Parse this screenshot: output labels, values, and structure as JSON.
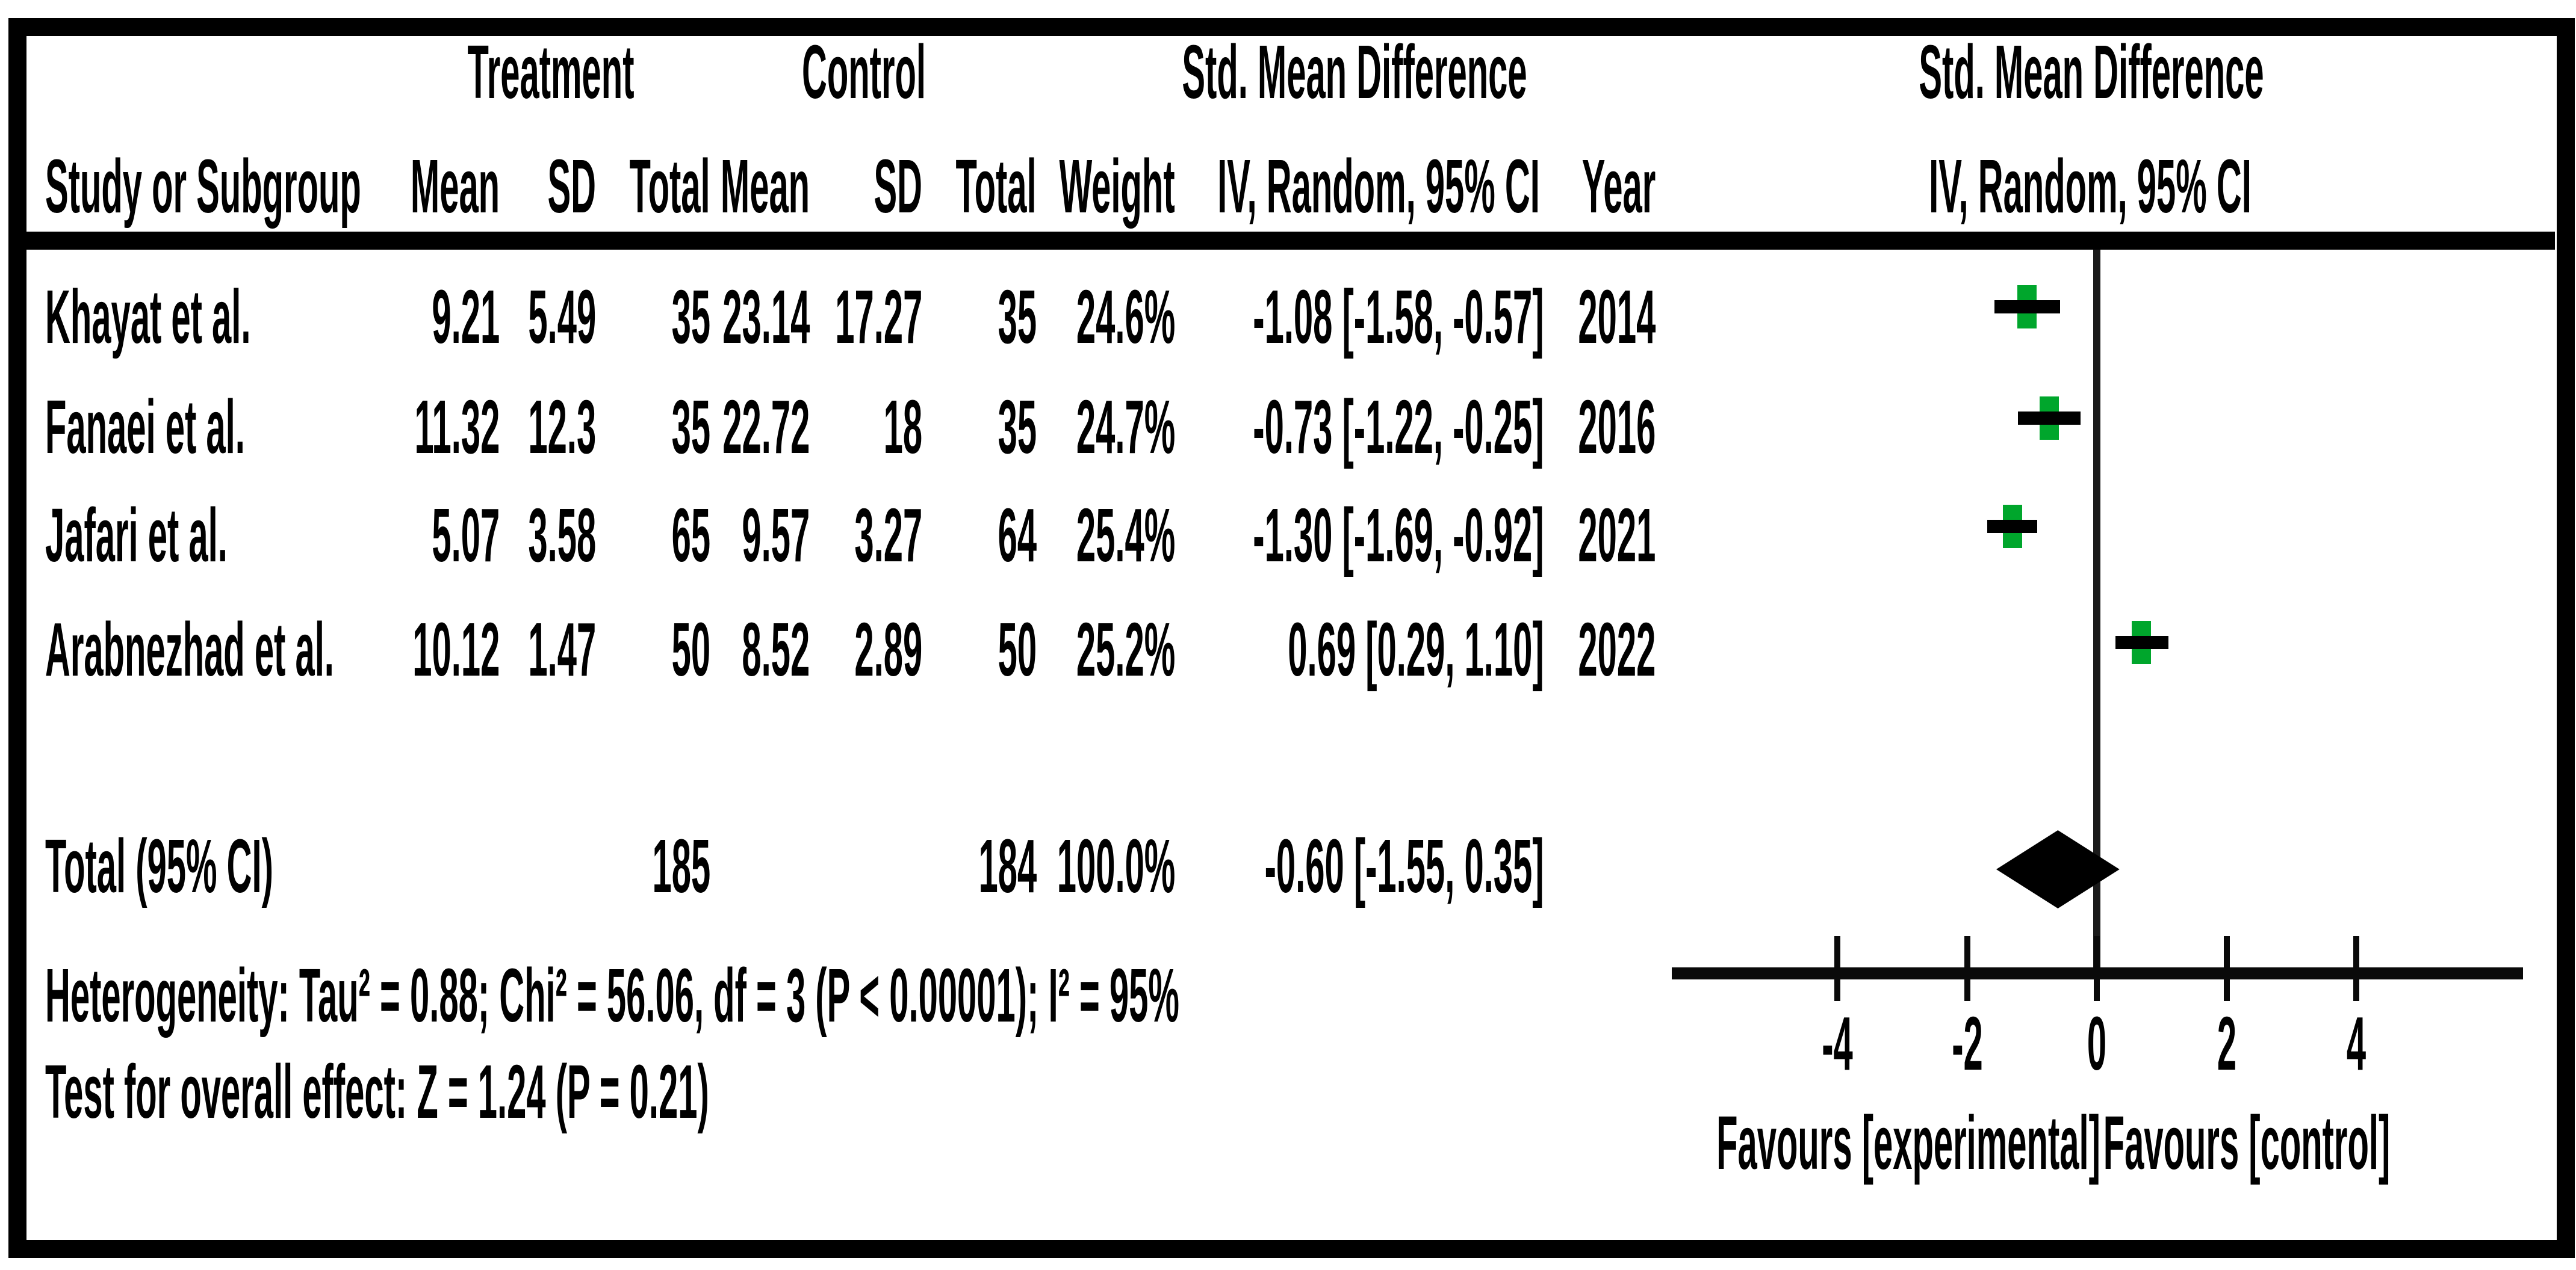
{
  "table": {
    "group_headers": {
      "treatment": "Treatment",
      "control": "Control",
      "smd": "Std. Mean Difference",
      "smd_plot": "Std. Mean Difference"
    },
    "col_headers": {
      "study": "Study or Subgroup",
      "mean": "Mean",
      "sd": "SD",
      "total": "Total",
      "mean2": "Mean",
      "sd2": "SD",
      "total2": "Total",
      "weight": "Weight",
      "iv": "IV, Random, 95% CI",
      "year": "Year",
      "iv_plot": "IV, Random, 95% CI"
    },
    "studies": [
      {
        "name": "Khayat et al.",
        "mean": "9.21",
        "sd": "5.49",
        "total": "35",
        "c_mean": "23.14",
        "c_sd": "17.27",
        "c_total": "35",
        "weight": "24.6%",
        "ci": "-1.08 [-1.58, -0.57]",
        "year": "2014"
      },
      {
        "name": "Fanaei et al.",
        "mean": "11.32",
        "sd": "12.3",
        "total": "35",
        "c_mean": "22.72",
        "c_sd": "18",
        "c_total": "35",
        "weight": "24.7%",
        "ci": "-0.73 [-1.22, -0.25]",
        "year": "2016"
      },
      {
        "name": "Jafari et al.",
        "mean": "5.07",
        "sd": "3.58",
        "total": "65",
        "c_mean": "9.57",
        "c_sd": "3.27",
        "c_total": "64",
        "weight": "25.4%",
        "ci": "-1.30 [-1.69, -0.92]",
        "year": "2021"
      },
      {
        "name": "Arabnezhad et al.",
        "mean": "10.12",
        "sd": "1.47",
        "total": "50",
        "c_mean": "8.52",
        "c_sd": "2.89",
        "c_total": "50",
        "weight": "25.2%",
        "ci": "0.69 [0.29, 1.10]",
        "year": "2022"
      }
    ],
    "total_row": {
      "label": "Total (95% CI)",
      "total": "185",
      "c_total": "184",
      "weight": "100.0%",
      "ci": "-0.60 [-1.55, 0.35]"
    },
    "heterogeneity": "Heterogeneity: Tau² = 0.88; Chi² = 56.06, df = 3 (P < 0.00001); I² = 95%",
    "overall_effect": "Test for overall effect: Z = 1.24 (P = 0.21)"
  },
  "plot": {
    "tick_labels": [
      "-4",
      "-2",
      "0",
      "2",
      "4"
    ],
    "favours_left": "Favours [experimental]",
    "favours_right": "Favours [control]",
    "marker_color": "#00a62c",
    "diamond_color": "#000000"
  },
  "chart_data": {
    "type": "forest",
    "effect_measure": "Std. Mean Difference, IV, Random, 95% CI",
    "x_axis": {
      "min": -4,
      "max": 4,
      "ticks": [
        -4,
        -2,
        0,
        2,
        4
      ],
      "label_left": "Favours [experimental]",
      "label_right": "Favours [control]"
    },
    "studies": [
      {
        "study": "Khayat et al.",
        "year": 2014,
        "treatment": {
          "mean": 9.21,
          "sd": 5.49,
          "total": 35
        },
        "control": {
          "mean": 23.14,
          "sd": 17.27,
          "total": 35
        },
        "weight_pct": 24.6,
        "smd": -1.08,
        "ci_low": -1.58,
        "ci_high": -0.57
      },
      {
        "study": "Fanaei et al.",
        "year": 2016,
        "treatment": {
          "mean": 11.32,
          "sd": 12.3,
          "total": 35
        },
        "control": {
          "mean": 22.72,
          "sd": 18,
          "total": 35
        },
        "weight_pct": 24.7,
        "smd": -0.73,
        "ci_low": -1.22,
        "ci_high": -0.25
      },
      {
        "study": "Jafari et al.",
        "year": 2021,
        "treatment": {
          "mean": 5.07,
          "sd": 3.58,
          "total": 65
        },
        "control": {
          "mean": 9.57,
          "sd": 3.27,
          "total": 64
        },
        "weight_pct": 25.4,
        "smd": -1.3,
        "ci_low": -1.69,
        "ci_high": -0.92
      },
      {
        "study": "Arabnezhad et al.",
        "year": 2022,
        "treatment": {
          "mean": 10.12,
          "sd": 1.47,
          "total": 50
        },
        "control": {
          "mean": 8.52,
          "sd": 2.89,
          "total": 50
        },
        "weight_pct": 25.2,
        "smd": 0.69,
        "ci_low": 0.29,
        "ci_high": 1.1
      }
    ],
    "total": {
      "label": "Total (95% CI)",
      "treatment_total": 185,
      "control_total": 184,
      "weight_pct": 100.0,
      "smd": -0.6,
      "ci_low": -1.55,
      "ci_high": 0.35
    },
    "heterogeneity": {
      "tau2": 0.88,
      "chi2": 56.06,
      "df": 3,
      "p": "< 0.00001",
      "i2_pct": 95
    },
    "overall_effect": {
      "z": 1.24,
      "p": 0.21
    }
  }
}
